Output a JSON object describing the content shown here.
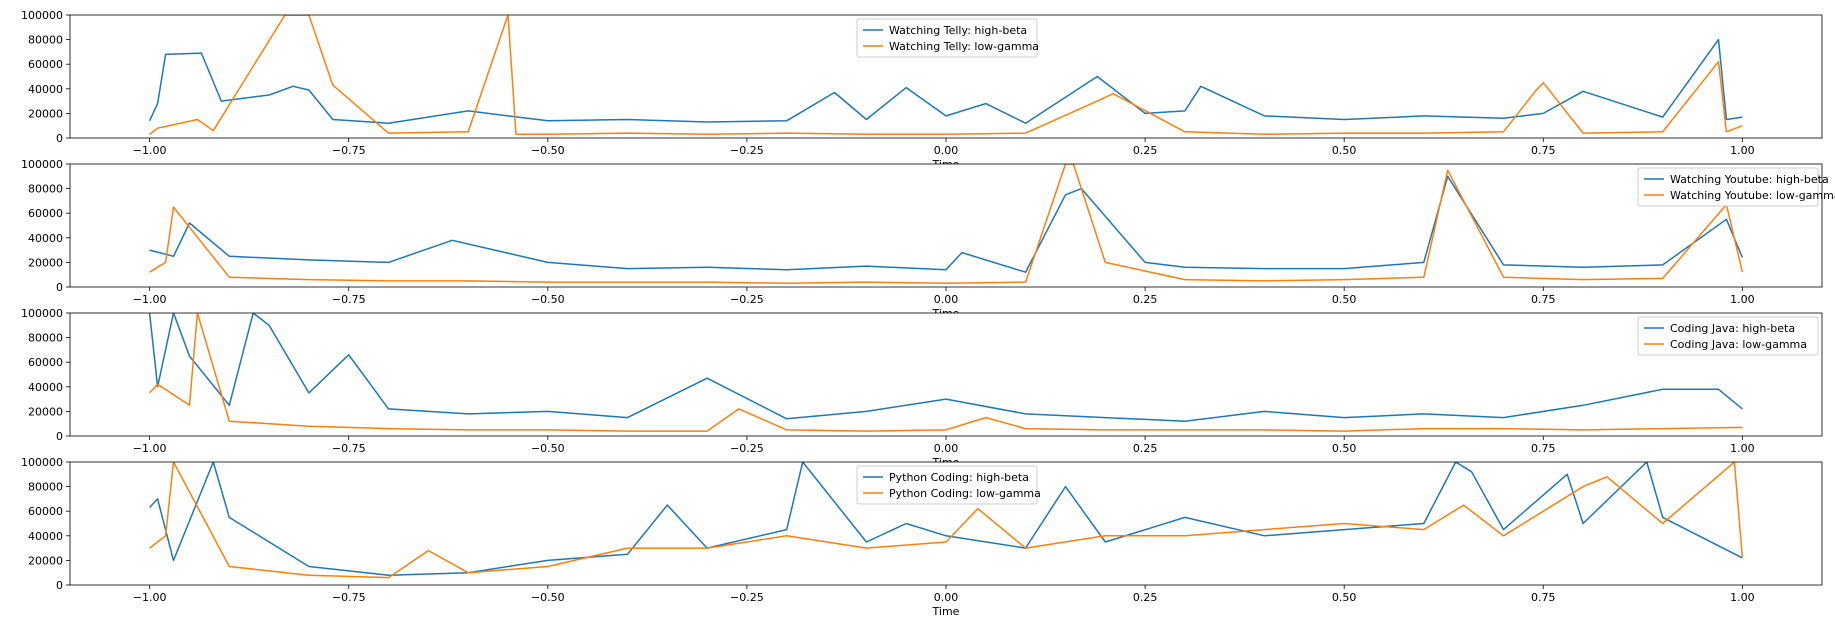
{
  "chart_data": [
    {
      "type": "line",
      "xlabel": "Time",
      "ylabel": "",
      "xlim": [
        -1.1,
        1.1
      ],
      "ylim": [
        0,
        100000
      ],
      "xticks": [
        "−1.00",
        "−0.75",
        "−0.50",
        "−0.25",
        "0.00",
        "0.25",
        "0.50",
        "0.75",
        "1.00"
      ],
      "yticks": [
        "0",
        "20000",
        "40000",
        "60000",
        "80000",
        "100000"
      ],
      "legend_position": "upper center",
      "colors": [
        "#1f77b4",
        "#ff7f0e"
      ],
      "series": [
        {
          "name": "Watching Telly: high-beta",
          "x": [
            -1.0,
            -0.99,
            -0.98,
            -0.935,
            -0.91,
            -0.85,
            -0.82,
            -0.8,
            -0.77,
            -0.7,
            -0.6,
            -0.5,
            -0.4,
            -0.3,
            -0.2,
            -0.14,
            -0.1,
            -0.05,
            0.0,
            0.05,
            0.1,
            0.19,
            0.25,
            0.3,
            0.32,
            0.4,
            0.5,
            0.6,
            0.7,
            0.75,
            0.8,
            0.9,
            0.97,
            0.98,
            1.0
          ],
          "y": [
            14000,
            28000,
            68000,
            69000,
            30000,
            35000,
            42000,
            39000,
            15000,
            12000,
            22000,
            14000,
            15000,
            13000,
            14000,
            37000,
            15000,
            41000,
            18000,
            28000,
            12000,
            50000,
            20000,
            22000,
            42000,
            18000,
            15000,
            18000,
            16000,
            20000,
            38000,
            17000,
            80000,
            15000,
            17000
          ]
        },
        {
          "name": "Watching Telly: low-gamma",
          "x": [
            -1.0,
            -0.99,
            -0.94,
            -0.92,
            -0.83,
            -0.82,
            -0.8,
            -0.77,
            -0.7,
            -0.6,
            -0.55,
            -0.54,
            -0.5,
            -0.4,
            -0.3,
            -0.2,
            -0.1,
            0.0,
            0.1,
            0.19,
            0.21,
            0.3,
            0.4,
            0.5,
            0.6,
            0.7,
            0.74,
            0.75,
            0.8,
            0.9,
            0.97,
            0.98,
            1.0
          ],
          "y": [
            3000,
            8000,
            15000,
            6000,
            100000,
            100000,
            100000,
            43000,
            4000,
            5000,
            100000,
            3000,
            3000,
            4000,
            3000,
            4000,
            3000,
            3000,
            4000,
            30000,
            36000,
            5000,
            3000,
            4000,
            4000,
            5000,
            38000,
            45000,
            4000,
            5000,
            62000,
            5000,
            10000
          ]
        }
      ]
    },
    {
      "type": "line",
      "xlabel": "Time",
      "ylabel": "",
      "xlim": [
        -1.1,
        1.1
      ],
      "ylim": [
        0,
        100000
      ],
      "xticks": [
        "−1.00",
        "−0.75",
        "−0.50",
        "−0.25",
        "0.00",
        "0.25",
        "0.50",
        "0.75",
        "1.00"
      ],
      "yticks": [
        "0",
        "20000",
        "40000",
        "60000",
        "80000",
        "100000"
      ],
      "legend_position": "upper right",
      "colors": [
        "#1f77b4",
        "#ff7f0e"
      ],
      "series": [
        {
          "name": "Watching Youtube: high-beta",
          "x": [
            -1.0,
            -0.97,
            -0.95,
            -0.9,
            -0.8,
            -0.7,
            -0.62,
            -0.5,
            -0.4,
            -0.3,
            -0.2,
            -0.1,
            0.0,
            0.02,
            0.1,
            0.15,
            0.17,
            0.25,
            0.3,
            0.4,
            0.5,
            0.6,
            0.63,
            0.7,
            0.8,
            0.9,
            0.98,
            1.0
          ],
          "y": [
            30000,
            25000,
            52000,
            25000,
            22000,
            20000,
            38000,
            20000,
            15000,
            16000,
            14000,
            17000,
            14000,
            28000,
            12000,
            75000,
            80000,
            20000,
            16000,
            15000,
            15000,
            20000,
            90000,
            18000,
            16000,
            18000,
            55000,
            24000
          ]
        },
        {
          "name": "Watching Youtube: low-gamma",
          "x": [
            -1.0,
            -0.98,
            -0.97,
            -0.9,
            -0.8,
            -0.7,
            -0.6,
            -0.5,
            -0.4,
            -0.3,
            -0.2,
            -0.1,
            0.0,
            0.1,
            0.15,
            0.16,
            0.2,
            0.3,
            0.4,
            0.5,
            0.6,
            0.63,
            0.7,
            0.8,
            0.9,
            0.98,
            1.0
          ],
          "y": [
            12000,
            20000,
            65000,
            8000,
            6000,
            5000,
            5000,
            4000,
            4000,
            4000,
            3000,
            4000,
            3000,
            4000,
            100000,
            100000,
            20000,
            6000,
            5000,
            6000,
            8000,
            95000,
            8000,
            6000,
            7000,
            67000,
            12000
          ]
        }
      ]
    },
    {
      "type": "line",
      "xlabel": "Time",
      "ylabel": "",
      "xlim": [
        -1.1,
        1.1
      ],
      "ylim": [
        0,
        100000
      ],
      "xticks": [
        "−1.00",
        "−0.75",
        "−0.50",
        "−0.25",
        "0.00",
        "0.25",
        "0.50",
        "0.75",
        "1.00"
      ],
      "yticks": [
        "0",
        "20000",
        "40000",
        "60000",
        "80000",
        "100000"
      ],
      "legend_position": "upper right",
      "colors": [
        "#1f77b4",
        "#ff7f0e"
      ],
      "series": [
        {
          "name": "Coding Java: high-beta",
          "x": [
            -1.0,
            -0.99,
            -0.97,
            -0.95,
            -0.9,
            -0.87,
            -0.85,
            -0.8,
            -0.75,
            -0.7,
            -0.6,
            -0.5,
            -0.4,
            -0.3,
            -0.2,
            -0.1,
            0.0,
            0.1,
            0.2,
            0.3,
            0.4,
            0.5,
            0.6,
            0.7,
            0.8,
            0.9,
            0.97,
            1.0
          ],
          "y": [
            100000,
            40000,
            100000,
            65000,
            25000,
            100000,
            90000,
            35000,
            66000,
            22000,
            18000,
            20000,
            15000,
            47000,
            14000,
            20000,
            30000,
            18000,
            15000,
            12000,
            20000,
            15000,
            18000,
            15000,
            25000,
            38000,
            38000,
            22000
          ]
        },
        {
          "name": "Coding Java: low-gamma",
          "x": [
            -1.0,
            -0.99,
            -0.95,
            -0.94,
            -0.9,
            -0.8,
            -0.7,
            -0.6,
            -0.5,
            -0.4,
            -0.3,
            -0.26,
            -0.2,
            -0.1,
            0.0,
            0.05,
            0.1,
            0.2,
            0.3,
            0.4,
            0.5,
            0.6,
            0.7,
            0.8,
            0.9,
            1.0
          ],
          "y": [
            35000,
            42000,
            25000,
            100000,
            12000,
            8000,
            6000,
            5000,
            5000,
            4000,
            4000,
            22000,
            5000,
            4000,
            5000,
            15000,
            6000,
            5000,
            5000,
            5000,
            4000,
            6000,
            6000,
            5000,
            6000,
            7000
          ]
        }
      ]
    },
    {
      "type": "line",
      "xlabel": "Time",
      "ylabel": "",
      "xlim": [
        -1.1,
        1.1
      ],
      "ylim": [
        0,
        100000
      ],
      "xticks": [
        "−1.00",
        "−0.75",
        "−0.50",
        "−0.25",
        "0.00",
        "0.25",
        "0.50",
        "0.75",
        "1.00"
      ],
      "yticks": [
        "0",
        "20000",
        "40000",
        "60000",
        "80000",
        "100000"
      ],
      "legend_position": "upper center",
      "colors": [
        "#1f77b4",
        "#ff7f0e"
      ],
      "series": [
        {
          "name": "Python Coding: high-beta",
          "x": [
            -1.0,
            -0.99,
            -0.97,
            -0.92,
            -0.9,
            -0.8,
            -0.7,
            -0.6,
            -0.5,
            -0.4,
            -0.35,
            -0.3,
            -0.2,
            -0.18,
            -0.1,
            -0.05,
            0.0,
            0.1,
            0.15,
            0.2,
            0.3,
            0.4,
            0.5,
            0.6,
            0.64,
            0.66,
            0.7,
            0.78,
            0.8,
            0.88,
            0.9,
            1.0
          ],
          "y": [
            63000,
            70000,
            20000,
            100000,
            55000,
            15000,
            8000,
            10000,
            20000,
            25000,
            65000,
            30000,
            45000,
            100000,
            35000,
            50000,
            40000,
            30000,
            80000,
            35000,
            55000,
            40000,
            45000,
            50000,
            100000,
            92000,
            45000,
            90000,
            50000,
            100000,
            55000,
            22000
          ]
        },
        {
          "name": "Python Coding: low-gamma",
          "x": [
            -1.0,
            -0.98,
            -0.97,
            -0.9,
            -0.8,
            -0.7,
            -0.65,
            -0.6,
            -0.5,
            -0.4,
            -0.3,
            -0.2,
            -0.1,
            0.0,
            0.04,
            0.1,
            0.2,
            0.3,
            0.4,
            0.5,
            0.6,
            0.65,
            0.7,
            0.8,
            0.83,
            0.9,
            0.99,
            1.0
          ],
          "y": [
            30000,
            40000,
            100000,
            15000,
            8000,
            6000,
            28000,
            10000,
            15000,
            30000,
            30000,
            40000,
            30000,
            35000,
            62000,
            30000,
            40000,
            40000,
            45000,
            50000,
            45000,
            65000,
            40000,
            80000,
            88000,
            50000,
            100000,
            22000
          ]
        }
      ]
    }
  ]
}
